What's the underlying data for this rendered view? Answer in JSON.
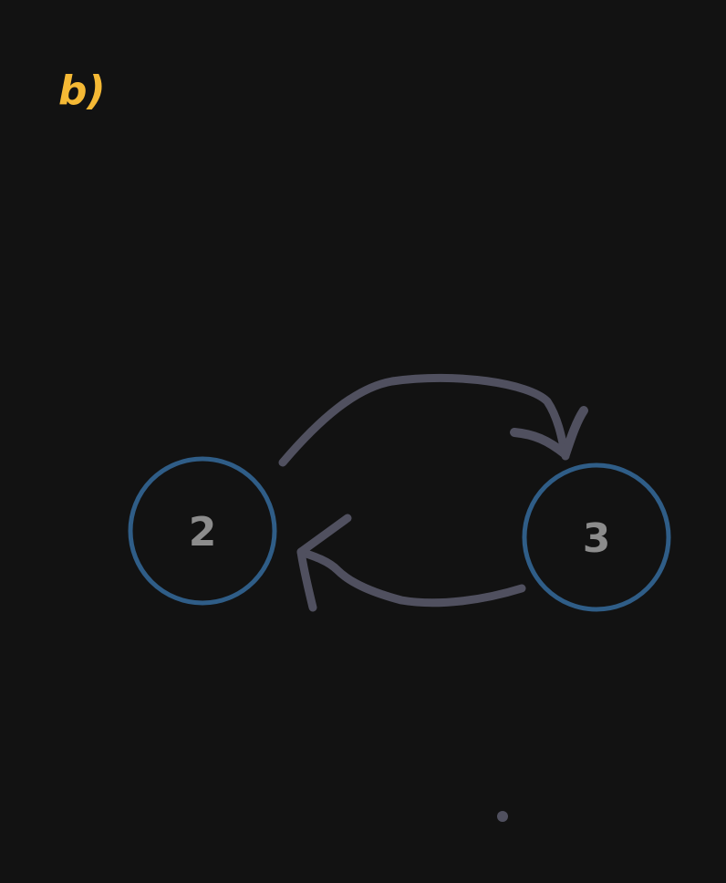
{
  "title": "b)",
  "nodes": [
    {
      "id": "node-2",
      "label": "2"
    },
    {
      "id": "node-3",
      "label": "3"
    }
  ],
  "edges": [
    {
      "from": "2",
      "to": "3"
    },
    {
      "from": "3",
      "to": "2"
    }
  ],
  "colors": {
    "background": "#121212",
    "title": "#f5b935",
    "node_stroke": "#2f5d87",
    "node_text": "#8c8c8c",
    "edge_stroke": "#50505f"
  }
}
